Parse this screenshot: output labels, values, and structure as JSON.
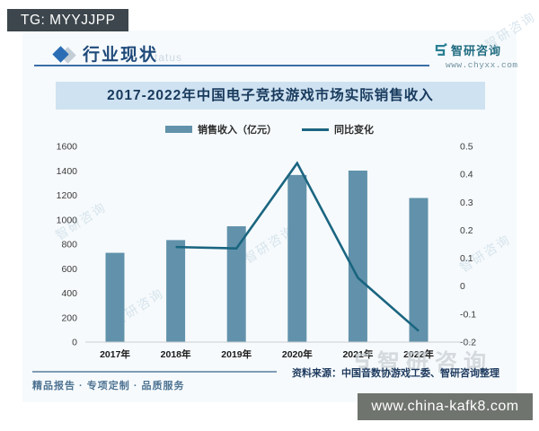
{
  "page": {
    "tg_badge": "TG: MYYJJPP",
    "section_title": "行业现状",
    "status_watermark_fragment": "tatus",
    "brand": {
      "name": "智研咨询",
      "site": "www.chyxx.com"
    },
    "watermark_text": "智研咨询",
    "footer_left": "精品报告 · 专项定制 · 品质服务",
    "source": "资料来源：中国音数协游戏工委、智研咨询整理",
    "url_badge": "www.china-kafk8.com"
  },
  "colors": {
    "bar": "#6292ab",
    "line": "#1a6580",
    "banner_bg": "#cfe2f1",
    "banner_text": "#17395c",
    "accent_blue": "#1f4a7a",
    "axis": "#c9cdd1"
  },
  "chart_data": {
    "type": "bar",
    "combo": "bar+line dual-axis",
    "title": "2017-2022年中国电子竞技游戏市场实际销售收入",
    "categories": [
      "2017年",
      "2018年",
      "2019年",
      "2020年",
      "2021年",
      "2022年"
    ],
    "series": [
      {
        "name": "销售收入（亿元）",
        "type": "bar",
        "axis": "left",
        "values": [
          730,
          834,
          947,
          1366,
          1402,
          1178
        ]
      },
      {
        "name": "同比变化",
        "type": "line",
        "axis": "right",
        "values": [
          null,
          0.14,
          0.135,
          0.44,
          0.03,
          -0.16
        ]
      }
    ],
    "left_axis": {
      "min": 0,
      "max": 1600,
      "step": 200
    },
    "right_axis": {
      "min": -0.2,
      "max": 0.5,
      "step": 0.1
    },
    "legend_position": "top",
    "grid": false
  }
}
